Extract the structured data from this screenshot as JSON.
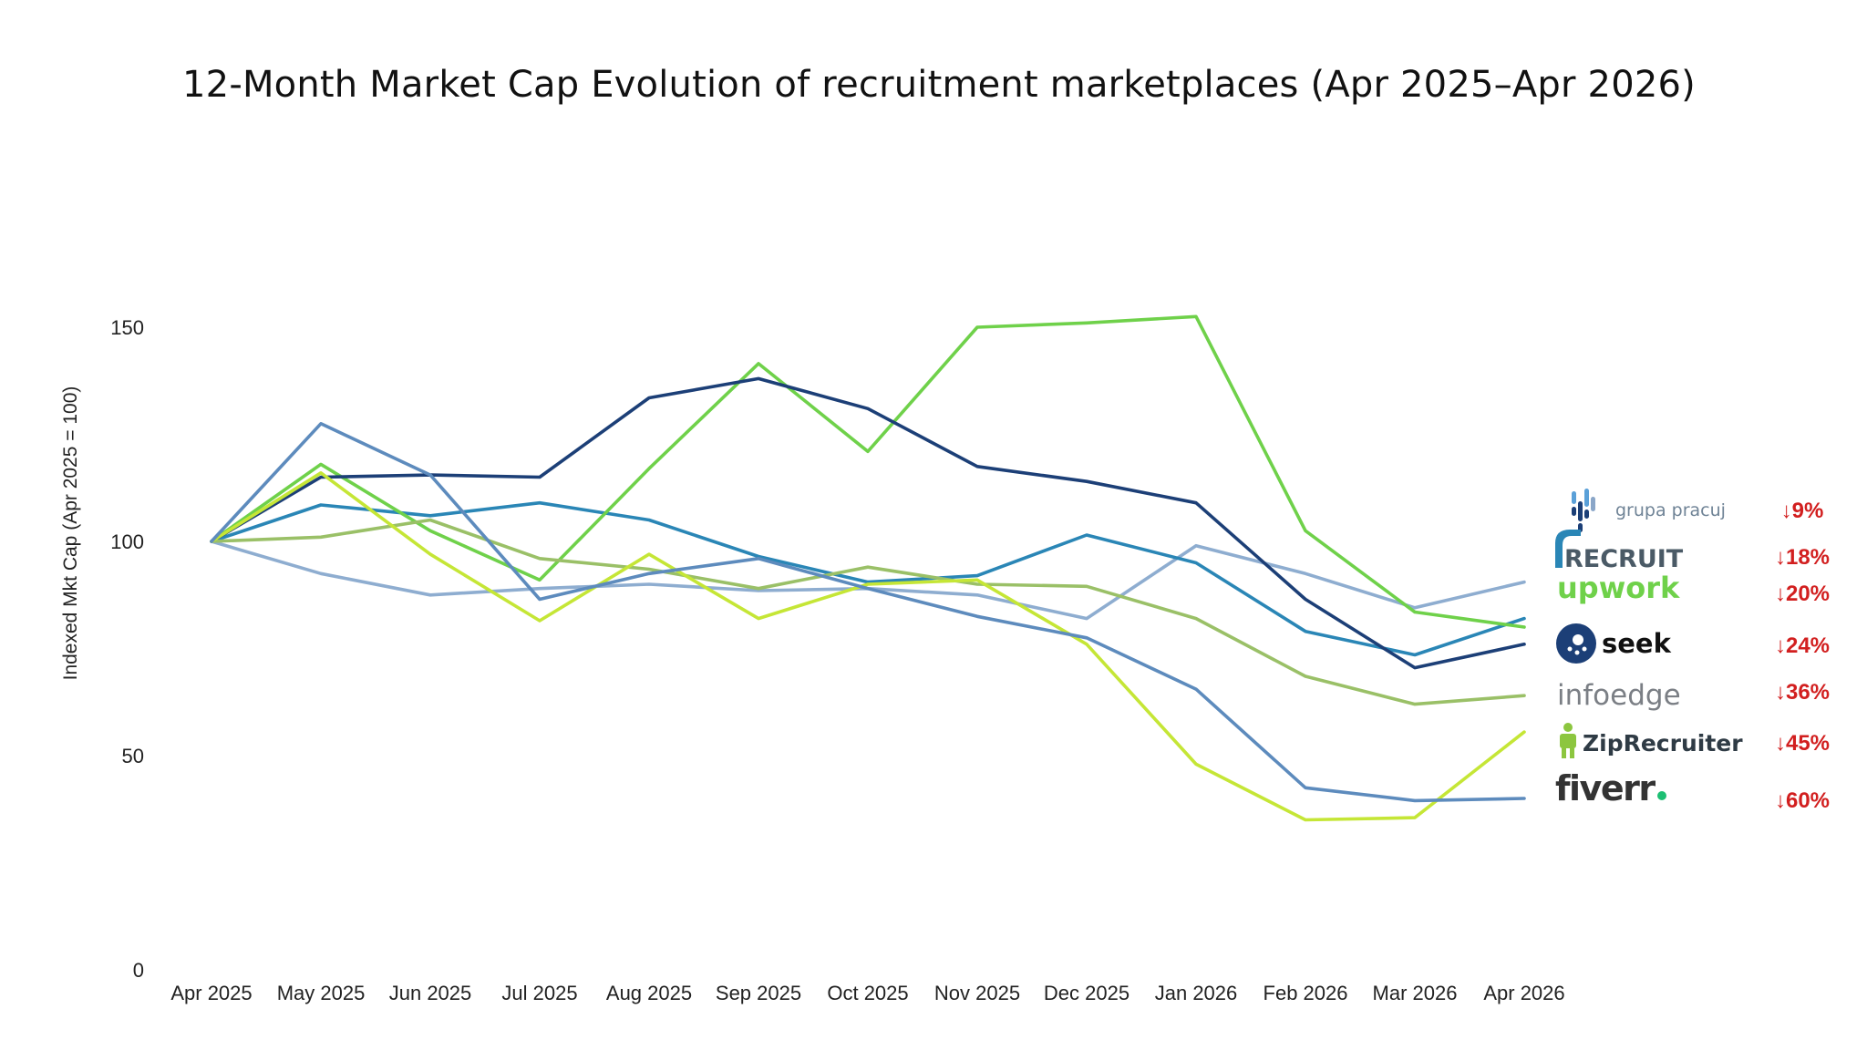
{
  "chart_data": {
    "type": "line",
    "title": "12-Month Market Cap Evolution of recruitment marketplaces (Apr 2025–Apr 2026)",
    "xlabel": "",
    "ylabel": "Indexed Mkt Cap (Apr 2025 = 100)",
    "ylim": [
      0,
      175
    ],
    "yticks": [
      0,
      50,
      100,
      150
    ],
    "grid": false,
    "legend_position": "right",
    "categories": [
      "Apr 2025",
      "May 2025",
      "Jun 2025",
      "Jul 2025",
      "Aug 2025",
      "Sep 2025",
      "Oct 2025",
      "Nov 2025",
      "Dec 2025",
      "Jan 2026",
      "Feb 2026",
      "Mar 2026",
      "Apr 2026"
    ],
    "series": [
      {
        "name": "grupa pracuj",
        "color": "#8eadd0",
        "change": "↓9%",
        "values": [
          100,
          92.5,
          87.5,
          89,
          90,
          88.5,
          89,
          87.5,
          82,
          99,
          92.5,
          84.5,
          90.5
        ]
      },
      {
        "name": "RECRUIT",
        "color": "#2a86b6",
        "change": "↓18%",
        "values": [
          100,
          108.5,
          106,
          109,
          105,
          96.5,
          90.5,
          92,
          101.5,
          95,
          79,
          73.5,
          82
        ]
      },
      {
        "name": "upwork",
        "color": "#6fd14a",
        "change": "↓20%",
        "values": [
          100,
          118,
          102.5,
          91,
          117,
          141.5,
          121,
          150,
          151,
          152.5,
          102.5,
          83.5,
          80
        ]
      },
      {
        "name": "seek",
        "color": "#1c3f77",
        "change": "↓24%",
        "values": [
          100,
          115,
          115.5,
          115,
          133.5,
          138,
          131,
          117.5,
          114,
          109,
          86.5,
          70.5,
          76
        ]
      },
      {
        "name": "infoedge",
        "color": "#9ac067",
        "change": "↓36%",
        "values": [
          100,
          101,
          105,
          96,
          93.5,
          89,
          94,
          90,
          89.5,
          82,
          68.5,
          62,
          64
        ]
      },
      {
        "name": "ZipRecruiter",
        "color": "#c5e636",
        "change": "↓45%",
        "values": [
          100,
          116,
          97,
          81.5,
          97,
          82,
          90,
          91,
          76,
          48,
          35,
          35.5,
          55.5
        ]
      },
      {
        "name": "fiverr",
        "color": "#5d8bbd",
        "change": "↓60%",
        "values": [
          100,
          127.5,
          115.5,
          86.5,
          92.5,
          96,
          89,
          82.5,
          77.5,
          65.5,
          42.5,
          39.5,
          40
        ]
      }
    ]
  },
  "legend": {
    "logos": [
      {
        "text": "grupa pracuj"
      },
      {
        "text": "RECRUIT"
      },
      {
        "text": "upwork"
      },
      {
        "text": "seek"
      },
      {
        "text": "infoedge"
      },
      {
        "text": "ZipRecruiter"
      },
      {
        "text": "fiverr"
      }
    ]
  }
}
